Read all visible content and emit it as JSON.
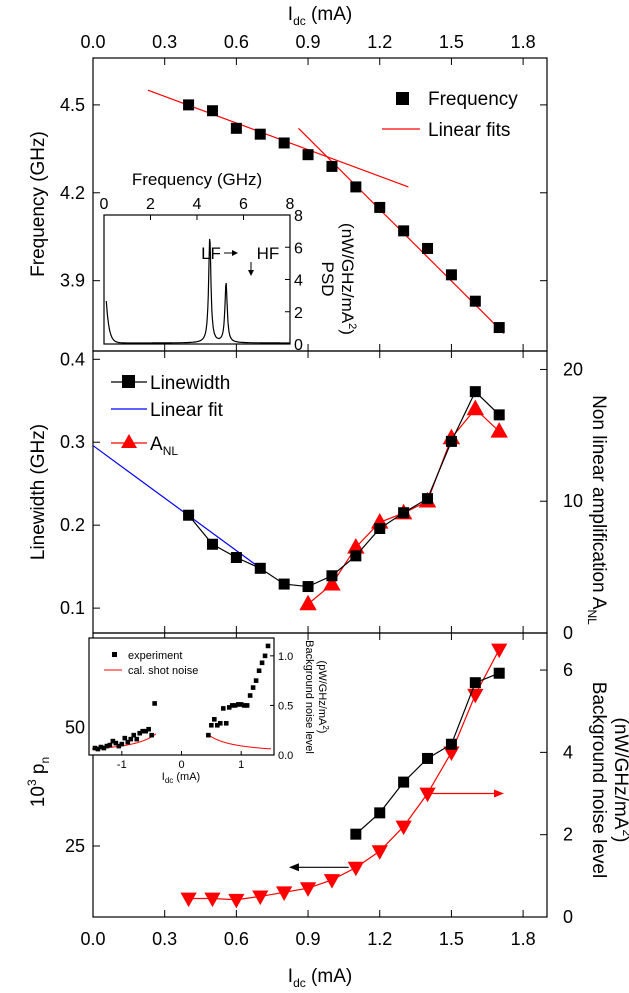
{
  "chart_data": [
    {
      "type": "line",
      "panel": "top",
      "xlabel": "I",
      "xlabel_sub": "dc",
      "xlabel_unit": " (mA)",
      "xlim": [
        0.0,
        1.9
      ],
      "xticks": [
        "0.0",
        "0.3",
        "0.6",
        "0.9",
        "1.2",
        "1.5",
        "1.8"
      ],
      "ylabel": "Frequency (GHz)",
      "ylim": [
        3.66,
        4.66
      ],
      "yticks": [
        "3.9",
        "4.2",
        "4.5"
      ],
      "legend_position": "top-right",
      "series": [
        {
          "name": "Frequency",
          "marker": "square",
          "color": "#000000",
          "x": [
            0.4,
            0.5,
            0.6,
            0.7,
            0.8,
            0.9,
            1.0,
            1.1,
            1.2,
            1.3,
            1.4,
            1.5,
            1.6,
            1.7
          ],
          "y": [
            4.5,
            4.48,
            4.42,
            4.4,
            4.37,
            4.33,
            4.29,
            4.22,
            4.15,
            4.07,
            4.01,
            3.92,
            3.83,
            3.74
          ]
        },
        {
          "name": "Linear fits",
          "color": "#ff0000",
          "line_only": true,
          "segments": [
            {
              "x": [
                0.23,
                1.32
              ],
              "y": [
                4.55,
                4.22
              ]
            },
            {
              "x": [
                0.86,
                1.72
              ],
              "y": [
                4.42,
                3.72
              ]
            }
          ]
        }
      ],
      "inset": {
        "xlabel": "Frequency (GHz)",
        "xlim": [
          0,
          8
        ],
        "xticks": [
          "0",
          "2",
          "4",
          "6",
          "8"
        ],
        "ylabel": "PSD",
        "ylabel_unit": "(nW/GHz/mA",
        "ylabel_sup": "2",
        "ylabel_close": ")",
        "ylim": [
          0,
          8
        ],
        "yticks": [
          "0",
          "2",
          "4",
          "6",
          "8"
        ],
        "annotations": [
          "LF",
          "HF"
        ],
        "peaks": [
          {
            "center": 4.55,
            "height": 6.5,
            "width": 0.12
          },
          {
            "center": 5.25,
            "height": 3.7,
            "width": 0.12
          }
        ],
        "low_freq_rise": 2.6
      }
    },
    {
      "type": "line",
      "panel": "middle",
      "xlim": [
        0.0,
        1.9
      ],
      "ylabel": "Linewidth (GHz)",
      "ylim": [
        0.07,
        0.41
      ],
      "yticks": [
        "0.1",
        "0.2",
        "0.3",
        "0.4"
      ],
      "y2label": "Non linear amplification A",
      "y2label_sub": "NL",
      "y2lim": [
        0,
        21.4
      ],
      "y2ticks": [
        "0",
        "10",
        "20"
      ],
      "legend_position": "top-left",
      "series": [
        {
          "name": "Linewidth",
          "marker": "square",
          "color": "#000000",
          "x": [
            0.4,
            0.5,
            0.6,
            0.7,
            0.8,
            0.9,
            1.0,
            1.1,
            1.2,
            1.3,
            1.4,
            1.5,
            1.6,
            1.7
          ],
          "y": [
            0.212,
            0.177,
            0.161,
            0.148,
            0.129,
            0.126,
            0.139,
            0.163,
            0.196,
            0.215,
            0.232,
            0.301,
            0.361,
            0.333
          ]
        },
        {
          "name": "Linear fit",
          "color": "#0000ff",
          "line_only": true,
          "x": [
            0.0,
            0.72
          ],
          "y": [
            0.296,
            0.144
          ]
        },
        {
          "name": "A",
          "name_sub": "NL",
          "marker": "triangle-up",
          "color": "#ff0000",
          "axis": "right",
          "x": [
            0.9,
            1.0,
            1.1,
            1.2,
            1.3,
            1.4,
            1.5,
            1.6,
            1.7
          ],
          "y": [
            2.2,
            3.7,
            6.5,
            8.4,
            9.1,
            10.0,
            14.8,
            17.0,
            15.3
          ]
        }
      ]
    },
    {
      "type": "line",
      "panel": "bottom",
      "xlabel": "I",
      "xlabel_sub": "dc",
      "xlabel_unit": " (mA)",
      "xlim": [
        0.0,
        1.9
      ],
      "xticks": [
        "0.0",
        "0.3",
        "0.6",
        "0.9",
        "1.2",
        "1.5",
        "1.8"
      ],
      "ylabel": "10",
      "ylabel_sup": "3",
      "ylabel_rest": " p",
      "ylabel_sub": "n",
      "ylim": [
        10,
        70
      ],
      "yticks": [
        "25",
        "50"
      ],
      "y2label": "Background noise level",
      "y2label2": "(nW/GHz/mA",
      "y2label2_sup": "2",
      "y2label2_close": ")",
      "y2lim": [
        0,
        6.9
      ],
      "y2ticks": [
        "0",
        "2",
        "4",
        "6"
      ],
      "series": [
        {
          "name": "p_n",
          "marker": "square",
          "color": "#000000",
          "x": [
            1.1,
            1.2,
            1.3,
            1.4,
            1.5,
            1.6,
            1.7
          ],
          "y": [
            27.5,
            32.0,
            38.5,
            43.5,
            46.5,
            59.5,
            61.5
          ]
        },
        {
          "name": "background noise",
          "marker": "triangle-down",
          "color": "#ff0000",
          "axis": "right",
          "x": [
            0.4,
            0.5,
            0.6,
            0.7,
            0.8,
            0.9,
            1.0,
            1.1,
            1.2,
            1.3,
            1.4,
            1.5,
            1.6,
            1.7
          ],
          "y": [
            0.45,
            0.45,
            0.42,
            0.5,
            0.6,
            0.7,
            0.9,
            1.2,
            1.6,
            2.2,
            3.0,
            4.0,
            5.4,
            6.5
          ]
        }
      ],
      "arrows": [
        {
          "direction": "left",
          "color": "#000000",
          "x_from": 1.07,
          "x_to": 0.82,
          "y": 20.5
        },
        {
          "direction": "right",
          "color": "#ff0000",
          "x_from": 1.42,
          "x_to": 1.72,
          "y2": 3.0
        }
      ],
      "inset": {
        "xlabel": "I",
        "xlabel_sub": "dc",
        "xlabel_unit": " (mA)",
        "xlim": [
          -1.55,
          1.55
        ],
        "xticks": [
          "-1",
          "0",
          "1"
        ],
        "ylabel": "Background noise level",
        "ylabel2": "(pW/GHz/mA",
        "ylabel2_sup": "2",
        "ylabel2_close": ")",
        "ylim": [
          0,
          1.18
        ],
        "yticks": [
          "0.0",
          "0.5",
          "1.0"
        ],
        "legend": [
          "experiment",
          "cal. shot noise"
        ],
        "experiment": {
          "x": [
            -1.45,
            -1.4,
            -1.35,
            -1.3,
            -1.25,
            -1.2,
            -1.15,
            -1.1,
            -1.05,
            -1.0,
            -0.95,
            -0.9,
            -0.85,
            -0.8,
            -0.75,
            -0.7,
            -0.65,
            -0.6,
            -0.55,
            -0.5,
            -0.45,
            0.45,
            0.5,
            0.55,
            0.6,
            0.65,
            0.7,
            0.75,
            0.8,
            0.85,
            0.9,
            0.95,
            1.0,
            1.05,
            1.1,
            1.15,
            1.2,
            1.25,
            1.3,
            1.35,
            1.4,
            1.45
          ],
          "y": [
            0.07,
            0.06,
            0.08,
            0.07,
            0.09,
            0.1,
            0.14,
            0.12,
            0.09,
            0.11,
            0.17,
            0.13,
            0.16,
            0.2,
            0.16,
            0.22,
            0.24,
            0.24,
            0.26,
            0.2,
            0.52,
            0.2,
            0.3,
            0.36,
            0.3,
            0.32,
            0.47,
            0.32,
            0.48,
            0.5,
            0.5,
            0.51,
            0.51,
            0.5,
            0.5,
            0.6,
            0.68,
            0.75,
            0.85,
            0.93,
            1.0,
            1.1
          ]
        },
        "shot_noise_scale": 0.092
      }
    }
  ]
}
